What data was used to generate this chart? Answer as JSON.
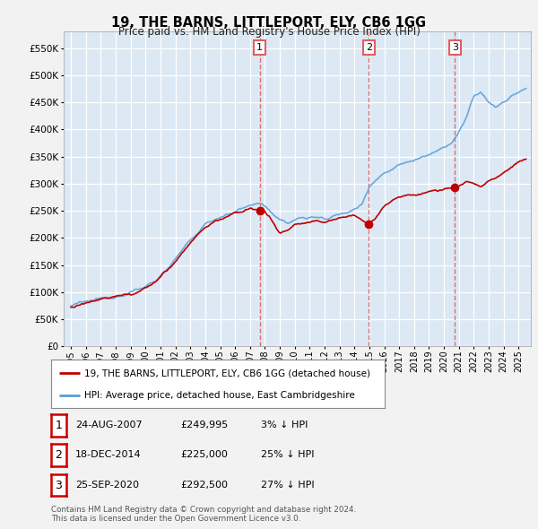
{
  "title": "19, THE BARNS, LITTLEPORT, ELY, CB6 1GG",
  "subtitle": "Price paid vs. HM Land Registry's House Price Index (HPI)",
  "legend_line1": "19, THE BARNS, LITTLEPORT, ELY, CB6 1GG (detached house)",
  "legend_line2": "HPI: Average price, detached house, East Cambridgeshire",
  "footnote1": "Contains HM Land Registry data © Crown copyright and database right 2024.",
  "footnote2": "This data is licensed under the Open Government Licence v3.0.",
  "transactions": [
    {
      "num": "1",
      "date": "24-AUG-2007",
      "price": 249995,
      "price_str": "£249,995",
      "pct": "3% ↓ HPI",
      "x": 2007.644
    },
    {
      "num": "2",
      "date": "18-DEC-2014",
      "price": 225000,
      "price_str": "£225,000",
      "pct": "25% ↓ HPI",
      "x": 2014.959
    },
    {
      "num": "3",
      "date": "25-SEP-2020",
      "price": 292500,
      "price_str": "£292,500",
      "pct": "27% ↓ HPI",
      "x": 2020.731
    }
  ],
  "hpi_color": "#5b9bd5",
  "price_color": "#c00000",
  "background_plot": "#dce9f5",
  "background_fig": "#f2f2f2",
  "grid_color": "#ffffff",
  "vline_color": "#e06060",
  "ylim": [
    0,
    580000
  ],
  "yticks": [
    0,
    50000,
    100000,
    150000,
    200000,
    250000,
    300000,
    350000,
    400000,
    450000,
    500000,
    550000
  ],
  "xlim_left": 1994.5,
  "xlim_right": 2025.8
}
